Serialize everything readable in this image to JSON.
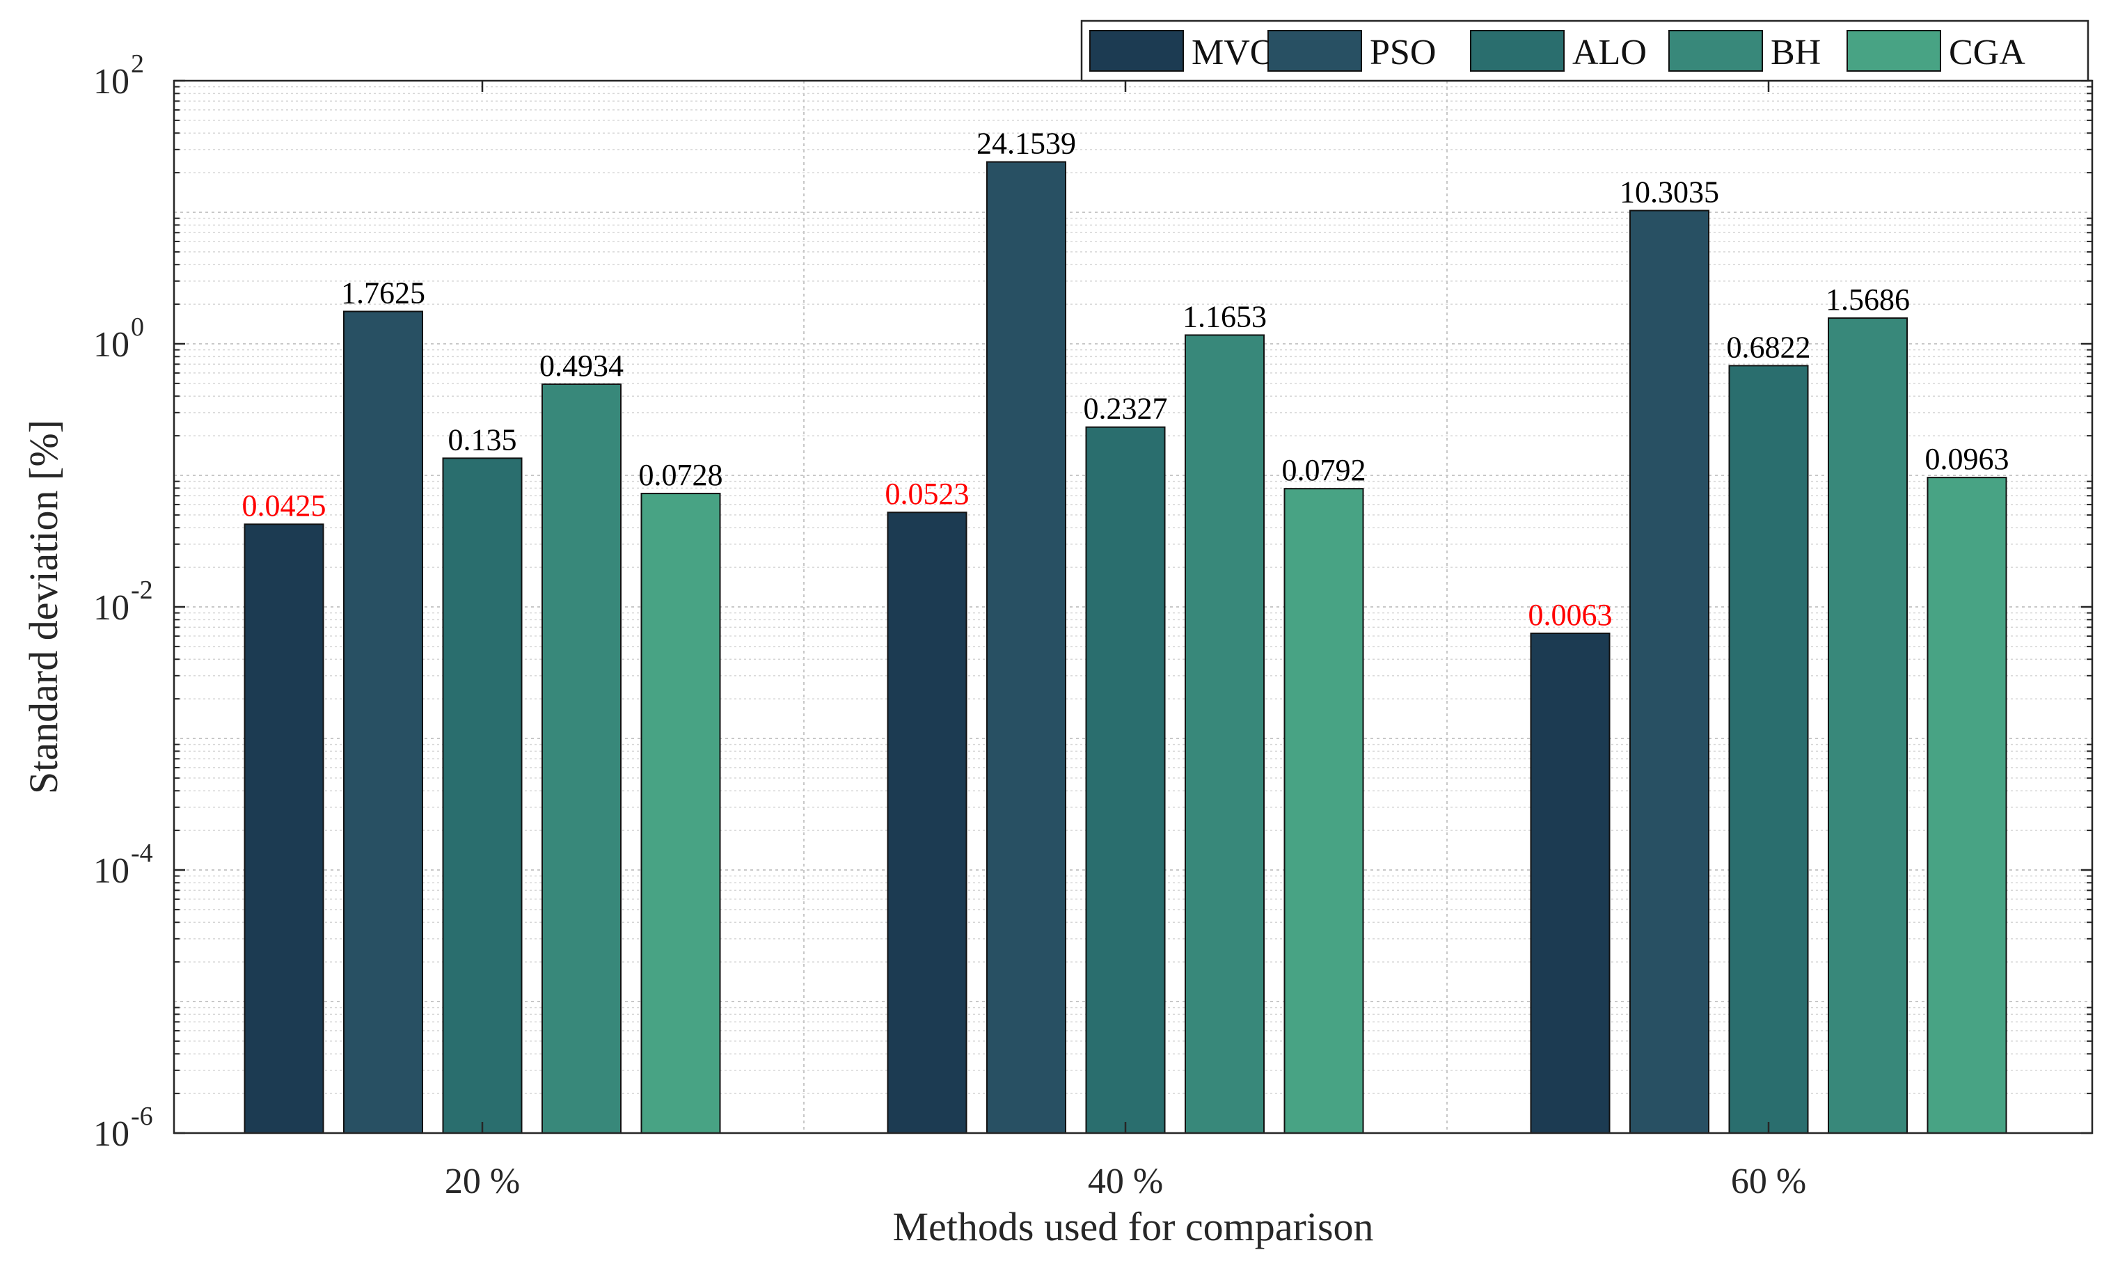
{
  "chart_data": {
    "type": "bar",
    "title": "",
    "xlabel": "Methods used for comparison",
    "ylabel": "Standard deviation [%]",
    "yscale": "log",
    "ylim": [
      1e-06,
      100
    ],
    "y_ticks": [
      {
        "base": "10",
        "exp": "-6"
      },
      {
        "base": "10",
        "exp": "-4"
      },
      {
        "base": "10",
        "exp": "-2"
      },
      {
        "base": "10",
        "exp": "0"
      },
      {
        "base": "10",
        "exp": "2"
      }
    ],
    "grid": true,
    "legend_position": "top-right",
    "categories": [
      "20 %",
      "40 %",
      "60 %"
    ],
    "series": [
      {
        "name": "MVO",
        "color": "#1c3b52",
        "values": [
          0.0425,
          0.0523,
          0.0063
        ],
        "labels": [
          "0.0425",
          "0.0523",
          "0.0063"
        ],
        "label_color": "#ff0000"
      },
      {
        "name": "PSO",
        "color": "#285063",
        "values": [
          1.7625,
          24.1539,
          10.3035
        ],
        "labels": [
          "1.7625",
          "24.1539",
          "10.3035"
        ],
        "label_color": "#000000"
      },
      {
        "name": "ALO",
        "color": "#2a6e6e",
        "values": [
          0.135,
          0.2327,
          0.6822
        ],
        "labels": [
          "0.135",
          "0.2327",
          "0.6822"
        ],
        "label_color": "#000000"
      },
      {
        "name": "BH",
        "color": "#38887a",
        "values": [
          0.4934,
          1.1653,
          1.5686
        ],
        "labels": [
          "0.4934",
          "1.1653",
          "1.5686"
        ],
        "label_color": "#000000"
      },
      {
        "name": "CGA",
        "color": "#48a384",
        "values": [
          0.0728,
          0.0792,
          0.0963
        ],
        "labels": [
          "0.0728",
          "0.0792",
          "0.0963"
        ],
        "label_color": "#000000"
      }
    ]
  }
}
